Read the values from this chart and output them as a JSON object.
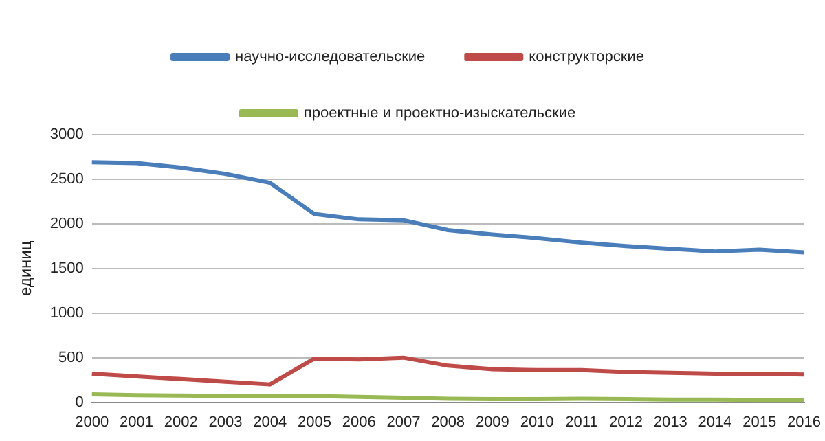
{
  "chart_data": {
    "type": "line",
    "ylabel": "единиц",
    "categories": [
      "2000",
      "2001",
      "2002",
      "2003",
      "2004",
      "2005",
      "2006",
      "2007",
      "2008",
      "2009",
      "2010",
      "2011",
      "2012",
      "2013",
      "2014",
      "2015",
      "2016"
    ],
    "series": [
      {
        "name": "научно-исследовательские",
        "color": "#4a7ebb",
        "values": [
          2690,
          2680,
          2630,
          2560,
          2460,
          2110,
          2050,
          2040,
          1930,
          1880,
          1840,
          1790,
          1750,
          1720,
          1690,
          1710,
          1680
        ]
      },
      {
        "name": "конструкторские",
        "color": "#be4b48",
        "values": [
          320,
          290,
          260,
          230,
          200,
          490,
          480,
          500,
          410,
          370,
          360,
          360,
          340,
          330,
          320,
          320,
          310
        ]
      },
      {
        "name": "проектные и проектно-изыскательские",
        "color": "#98b954",
        "values": [
          90,
          80,
          75,
          70,
          70,
          70,
          60,
          50,
          40,
          35,
          35,
          40,
          35,
          30,
          30,
          25,
          25
        ]
      }
    ],
    "ylim": [
      0,
      3000
    ],
    "yticks": [
      0,
      500,
      1000,
      1500,
      2000,
      2500,
      3000
    ],
    "grid": "y",
    "legend": "top",
    "marker": "none",
    "line_style": "solid"
  }
}
